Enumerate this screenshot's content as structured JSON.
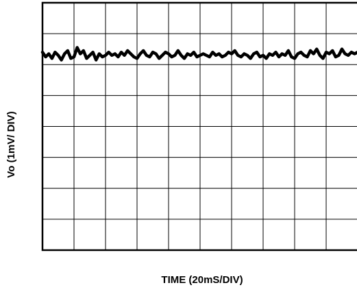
{
  "chart_data": {
    "type": "line",
    "title": "",
    "xlabel": "TIME (20mS/DIV)",
    "ylabel": "Vo (1mV/ DIV)",
    "x_divisions": 10,
    "y_divisions": 8,
    "x_unit_per_div": 20,
    "y_unit_per_div": 1,
    "xlim": [
      0,
      200
    ],
    "ylim": [
      0,
      8
    ],
    "grid": true,
    "series": [
      {
        "name": "",
        "color": "#000000",
        "x": [
          0,
          2,
          4,
          6,
          8,
          10,
          12,
          14,
          16,
          18,
          20,
          22,
          24,
          26,
          28,
          30,
          32,
          34,
          36,
          38,
          40,
          42,
          44,
          46,
          48,
          50,
          52,
          54,
          56,
          58,
          60,
          62,
          64,
          66,
          68,
          70,
          72,
          74,
          76,
          78,
          80,
          82,
          84,
          86,
          88,
          90,
          92,
          94,
          96,
          98,
          100,
          102,
          104,
          106,
          108,
          110,
          112,
          114,
          116,
          118,
          120,
          122,
          124,
          126,
          128,
          130,
          132,
          134,
          136,
          138,
          140,
          142,
          144,
          146,
          148,
          150,
          152,
          154,
          156,
          158,
          160,
          162,
          164,
          166,
          168,
          170,
          172,
          174,
          176,
          178,
          180,
          182,
          184,
          186,
          188,
          190,
          192,
          194,
          196,
          198,
          200
        ],
        "y": [
          6.4,
          6.25,
          6.35,
          6.2,
          6.4,
          6.3,
          6.15,
          6.35,
          6.45,
          6.2,
          6.25,
          6.55,
          6.35,
          6.45,
          6.2,
          6.3,
          6.4,
          6.15,
          6.35,
          6.25,
          6.3,
          6.4,
          6.3,
          6.35,
          6.25,
          6.4,
          6.3,
          6.45,
          6.35,
          6.25,
          6.2,
          6.35,
          6.45,
          6.3,
          6.25,
          6.4,
          6.35,
          6.2,
          6.3,
          6.4,
          6.35,
          6.25,
          6.3,
          6.45,
          6.3,
          6.2,
          6.35,
          6.3,
          6.4,
          6.25,
          6.3,
          6.35,
          6.3,
          6.25,
          6.4,
          6.3,
          6.35,
          6.25,
          6.3,
          6.4,
          6.35,
          6.45,
          6.3,
          6.25,
          6.35,
          6.3,
          6.2,
          6.35,
          6.4,
          6.25,
          6.3,
          6.2,
          6.35,
          6.3,
          6.4,
          6.25,
          6.35,
          6.3,
          6.45,
          6.25,
          6.2,
          6.35,
          6.4,
          6.3,
          6.25,
          6.45,
          6.35,
          6.5,
          6.3,
          6.2,
          6.4,
          6.35,
          6.45,
          6.25,
          6.3,
          6.5,
          6.35,
          6.3,
          6.4,
          6.35,
          6.4
        ]
      }
    ]
  }
}
